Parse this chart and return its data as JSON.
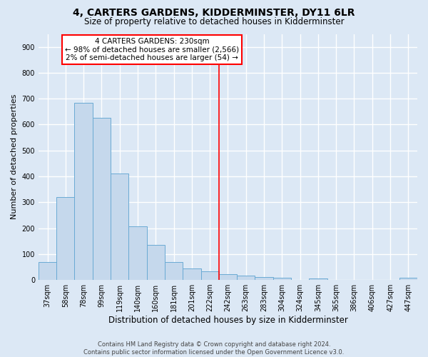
{
  "title": "4, CARTERS GARDENS, KIDDERMINSTER, DY11 6LR",
  "subtitle": "Size of property relative to detached houses in Kidderminster",
  "xlabel": "Distribution of detached houses by size in Kidderminster",
  "ylabel": "Number of detached properties",
  "categories": [
    "37sqm",
    "58sqm",
    "78sqm",
    "99sqm",
    "119sqm",
    "140sqm",
    "160sqm",
    "181sqm",
    "201sqm",
    "222sqm",
    "242sqm",
    "263sqm",
    "283sqm",
    "304sqm",
    "324sqm",
    "345sqm",
    "365sqm",
    "386sqm",
    "406sqm",
    "427sqm",
    "447sqm"
  ],
  "values": [
    70,
    320,
    683,
    625,
    410,
    207,
    136,
    68,
    45,
    33,
    22,
    18,
    10,
    8,
    0,
    7,
    0,
    0,
    0,
    0,
    8
  ],
  "bar_color": "#c5d8ec",
  "bar_edge_color": "#6aaad4",
  "vline_index": 9,
  "annotation_title": "4 CARTERS GARDENS: 230sqm",
  "annotation_line1": "← 98% of detached houses are smaller (2,566)",
  "annotation_line2": "2% of semi-detached houses are larger (54) →",
  "ylim": [
    0,
    950
  ],
  "yticks": [
    0,
    100,
    200,
    300,
    400,
    500,
    600,
    700,
    800,
    900
  ],
  "footer1": "Contains HM Land Registry data © Crown copyright and database right 2024.",
  "footer2": "Contains public sector information licensed under the Open Government Licence v3.0.",
  "background_color": "#dce8f5",
  "plot_bg_color": "#dce8f5",
  "grid_color": "#ffffff",
  "title_fontsize": 10,
  "subtitle_fontsize": 8.5,
  "axis_label_fontsize": 8.5,
  "ylabel_fontsize": 8,
  "tick_fontsize": 7,
  "annotation_fontsize": 7.5,
  "footer_fontsize": 6
}
